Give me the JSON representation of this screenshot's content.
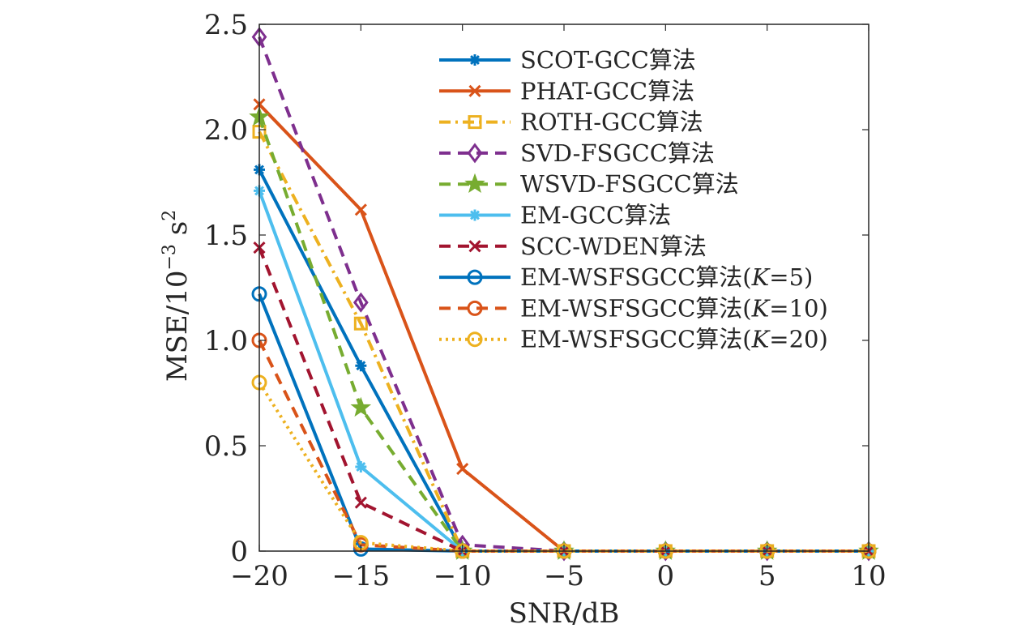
{
  "chart_data": {
    "type": "line",
    "x": [
      -20,
      -15,
      -10,
      -5,
      0,
      5,
      10
    ],
    "xlabel": "SNR/dB",
    "ylabel": {
      "base": "MSE/10",
      "exp": "−3",
      "unit": " s",
      "unit_exp": "2"
    },
    "xlim": [
      -20,
      10
    ],
    "ylim": [
      0,
      2.5
    ],
    "xticks": [
      -20,
      -15,
      -10,
      -5,
      0,
      5,
      10
    ],
    "xtick_labels": [
      "−20",
      "−15",
      "−10",
      "−5",
      "0",
      "5",
      "10"
    ],
    "yticks": [
      0,
      0.5,
      1.0,
      1.5,
      2.0,
      2.5
    ],
    "ytick_labels": [
      "0",
      "0.5",
      "1.0",
      "1.5",
      "2.0",
      "2.5"
    ],
    "grid": false,
    "legend_position": "top-right",
    "series": [
      {
        "name": "SCOT-GCC算法",
        "color": "#0072BD",
        "dash": "solid",
        "marker": "asterisk",
        "values": [
          1.81,
          0.88,
          0.0,
          0.0,
          0.0,
          0.0,
          0.0
        ]
      },
      {
        "name": "PHAT-GCC算法",
        "color": "#D95319",
        "dash": "solid",
        "marker": "x",
        "values": [
          2.12,
          1.62,
          0.39,
          0.0,
          0.0,
          0.0,
          0.0
        ]
      },
      {
        "name": "ROTH-GCC算法",
        "color": "#EDB120",
        "dash": "dashdot",
        "marker": "square",
        "values": [
          1.99,
          1.08,
          0.0,
          0.0,
          0.0,
          0.0,
          0.0
        ]
      },
      {
        "name": "SVD-FSGCC算法",
        "color": "#7E2F8E",
        "dash": "dashed",
        "marker": "diamond",
        "values": [
          2.44,
          1.18,
          0.03,
          0.0,
          0.0,
          0.0,
          0.0
        ]
      },
      {
        "name": "WSVD-FSGCC算法",
        "color": "#77AC30",
        "dash": "dashed",
        "marker": "star",
        "values": [
          2.06,
          0.68,
          0.0,
          0.0,
          0.0,
          0.0,
          0.0
        ]
      },
      {
        "name": "EM-GCC算法",
        "color": "#4DBEEE",
        "dash": "solid",
        "marker": "asterisk",
        "values": [
          1.71,
          0.4,
          0.0,
          0.0,
          0.0,
          0.0,
          0.0
        ]
      },
      {
        "name": "SCC-WDEN算法",
        "color": "#A2142F",
        "dash": "dashed",
        "marker": "x",
        "values": [
          1.44,
          0.23,
          0.0,
          0.0,
          0.0,
          0.0,
          0.0
        ]
      },
      {
        "name": "EM-WSFSGCC算法(",
        "italic": "K",
        "suffix": "=5)",
        "color": "#0072BD",
        "dash": "solid",
        "marker": "circle",
        "values": [
          1.22,
          0.01,
          0.0,
          0.0,
          0.0,
          0.0,
          0.0
        ]
      },
      {
        "name": "EM-WSFSGCC算法(",
        "italic": "K",
        "suffix": "=10)",
        "color": "#D95319",
        "dash": "dashed",
        "marker": "circle",
        "values": [
          1.0,
          0.03,
          0.0,
          0.0,
          0.0,
          0.0,
          0.0
        ]
      },
      {
        "name": "EM-WSFSGCC算法(",
        "italic": "K",
        "suffix": "=20)",
        "color": "#EDB120",
        "dash": "dotted",
        "marker": "circle",
        "values": [
          0.8,
          0.04,
          0.0,
          0.0,
          0.0,
          0.0,
          0.0
        ]
      }
    ]
  }
}
